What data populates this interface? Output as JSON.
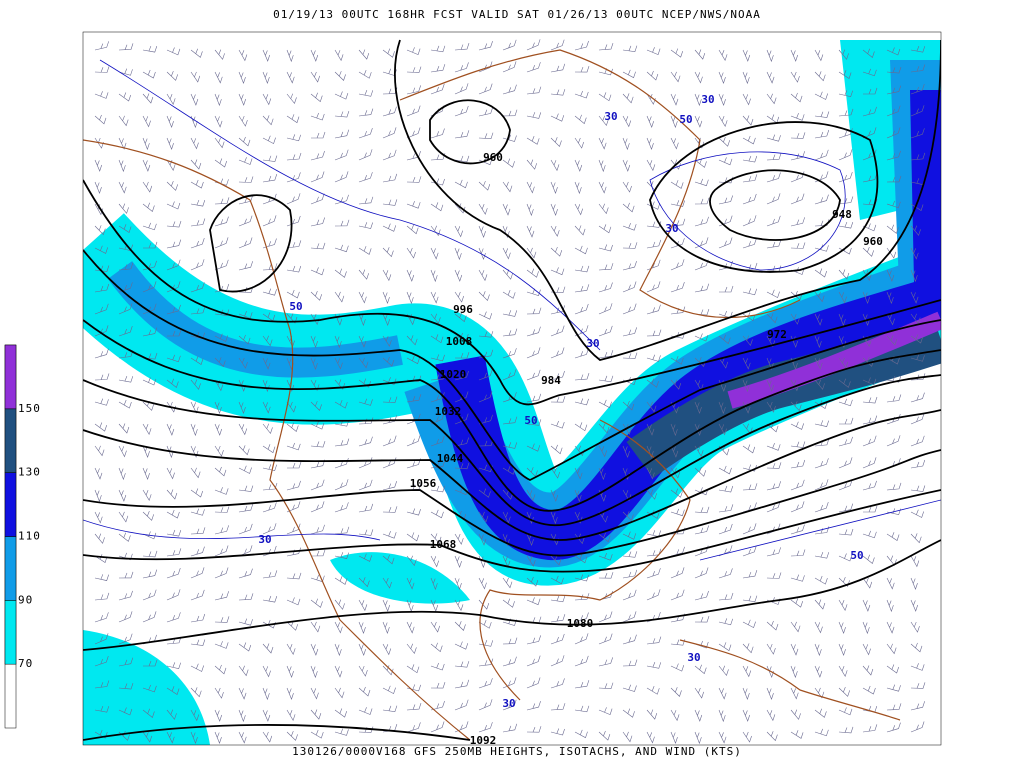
{
  "header": {
    "title": "01/19/13 00UTC  168HR  FCST VALID SAT 01/26/13 00UTC  NCEP/NWS/NOAA"
  },
  "footer": {
    "caption": "130126/0000V168 GFS 250MB HEIGHTS, ISOTACHS, AND WIND (KTS)"
  },
  "legend": {
    "entries": [
      {
        "label": "70",
        "color": "#00e8f0"
      },
      {
        "label": "90",
        "color": "#109ce8"
      },
      {
        "label": "110",
        "color": "#1010e0"
      },
      {
        "label": "130",
        "color": "#205080"
      },
      {
        "label": "150",
        "color": "#9030d8"
      }
    ]
  },
  "contour_labels": [
    "960",
    "948",
    "960",
    "972",
    "984",
    "996",
    "1008",
    "1020",
    "1032",
    "1044",
    "1056",
    "1068",
    "1080",
    "1092"
  ],
  "isotach_labels": [
    "30",
    "50",
    "30",
    "30",
    "50",
    "30",
    "50",
    "30",
    "50",
    "30",
    "30"
  ]
}
